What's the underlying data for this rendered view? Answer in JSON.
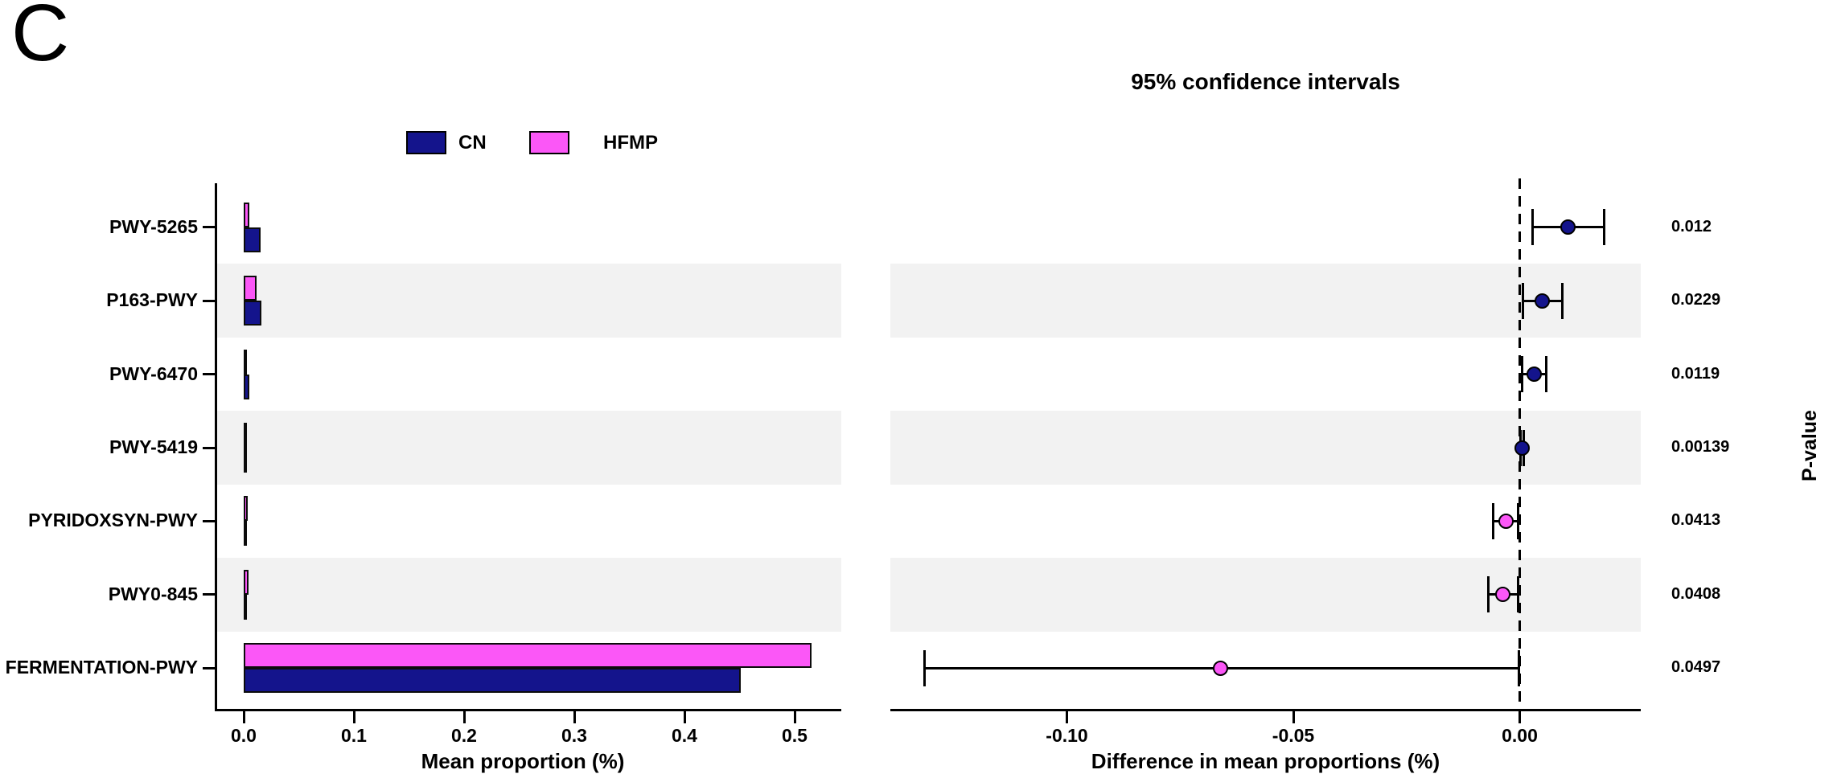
{
  "panel_label": "C",
  "legend": {
    "items": [
      {
        "label": "CN",
        "color": "#14148C"
      },
      {
        "label": "HFMP",
        "color": "#FB57F7"
      }
    ]
  },
  "pvalue_axis_label": "P-value",
  "colors": {
    "cn": "#14148C",
    "hfmp": "#FB57F7",
    "stripe": "#F2F2F2",
    "axis": "#000000"
  },
  "chart_data": [
    {
      "type": "bar",
      "orientation": "horizontal",
      "title": "",
      "xlabel": "Mean proportion (%)",
      "categories": [
        "PWY-5265",
        "P163-PWY",
        "PWY-6470",
        "PWY-5419",
        "PYRIDOXSYN-PWY",
        "PWY0-845",
        "FERMENTATION-PWY"
      ],
      "series": [
        {
          "name": "CN",
          "color": "#14148C",
          "values": [
            0.0155,
            0.016,
            0.005,
            0.0012,
            0.0008,
            0.0008,
            0.451
          ]
        },
        {
          "name": "HFMP",
          "color": "#FB57F7",
          "values": [
            0.005,
            0.0115,
            0.0008,
            0.0005,
            0.004,
            0.0045,
            0.515
          ]
        }
      ],
      "xticks": [
        {
          "value": 0.0,
          "label": "0.0"
        },
        {
          "value": 0.1,
          "label": "0.1"
        },
        {
          "value": 0.2,
          "label": "0.2"
        },
        {
          "value": 0.3,
          "label": "0.3"
        },
        {
          "value": 0.4,
          "label": "0.4"
        },
        {
          "value": 0.5,
          "label": "0.5"
        }
      ],
      "xlim": [
        0,
        0.54
      ],
      "stripe_rows": [
        1,
        3,
        5
      ],
      "legend_position": "top"
    },
    {
      "type": "scatter",
      "subtype": "error-bar-95ci",
      "title": "95% confidence intervals",
      "xlabel": "Difference in mean proportions (%)",
      "categories": [
        "PWY-5265",
        "P163-PWY",
        "PWY-6470",
        "PWY-5419",
        "PYRIDOXSYN-PWY",
        "PWY0-845",
        "FERMENTATION-PWY"
      ],
      "points": [
        {
          "category": "PWY-5265",
          "mean": 0.0107,
          "ci_low": 0.0028,
          "ci_high": 0.0187,
          "group": "CN",
          "p_value": "0.012"
        },
        {
          "category": "P163-PWY",
          "mean": 0.005,
          "ci_low": 0.0007,
          "ci_high": 0.0094,
          "group": "CN",
          "p_value": "0.0229"
        },
        {
          "category": "PWY-6470",
          "mean": 0.0032,
          "ci_low": 0.0006,
          "ci_high": 0.0058,
          "group": "CN",
          "p_value": "0.0119"
        },
        {
          "category": "PWY-5419",
          "mean": 0.0005,
          "ci_low": 0.0001,
          "ci_high": 0.0009,
          "group": "CN",
          "p_value": "0.00139"
        },
        {
          "category": "PYRIDOXSYN-PWY",
          "mean": -0.0031,
          "ci_low": -0.0058,
          "ci_high": -0.0004,
          "group": "HFMP",
          "p_value": "0.0413"
        },
        {
          "category": "PWY0-845",
          "mean": -0.0038,
          "ci_low": -0.007,
          "ci_high": -0.0003,
          "group": "HFMP",
          "p_value": "0.0408"
        },
        {
          "category": "FERMENTATION-PWY",
          "mean": -0.066,
          "ci_low": -0.1315,
          "ci_high": -0.0002,
          "group": "HFMP",
          "p_value": "0.0497"
        }
      ],
      "xticks": [
        {
          "value": -0.1,
          "label": "-0.10"
        },
        {
          "value": -0.05,
          "label": "-0.05"
        },
        {
          "value": 0.0,
          "label": "0.00"
        }
      ],
      "xlim": [
        -0.139,
        0.027
      ],
      "zero_line": {
        "value": 0,
        "style": "dashed"
      },
      "stripe_rows": [
        1,
        3,
        5
      ]
    }
  ]
}
